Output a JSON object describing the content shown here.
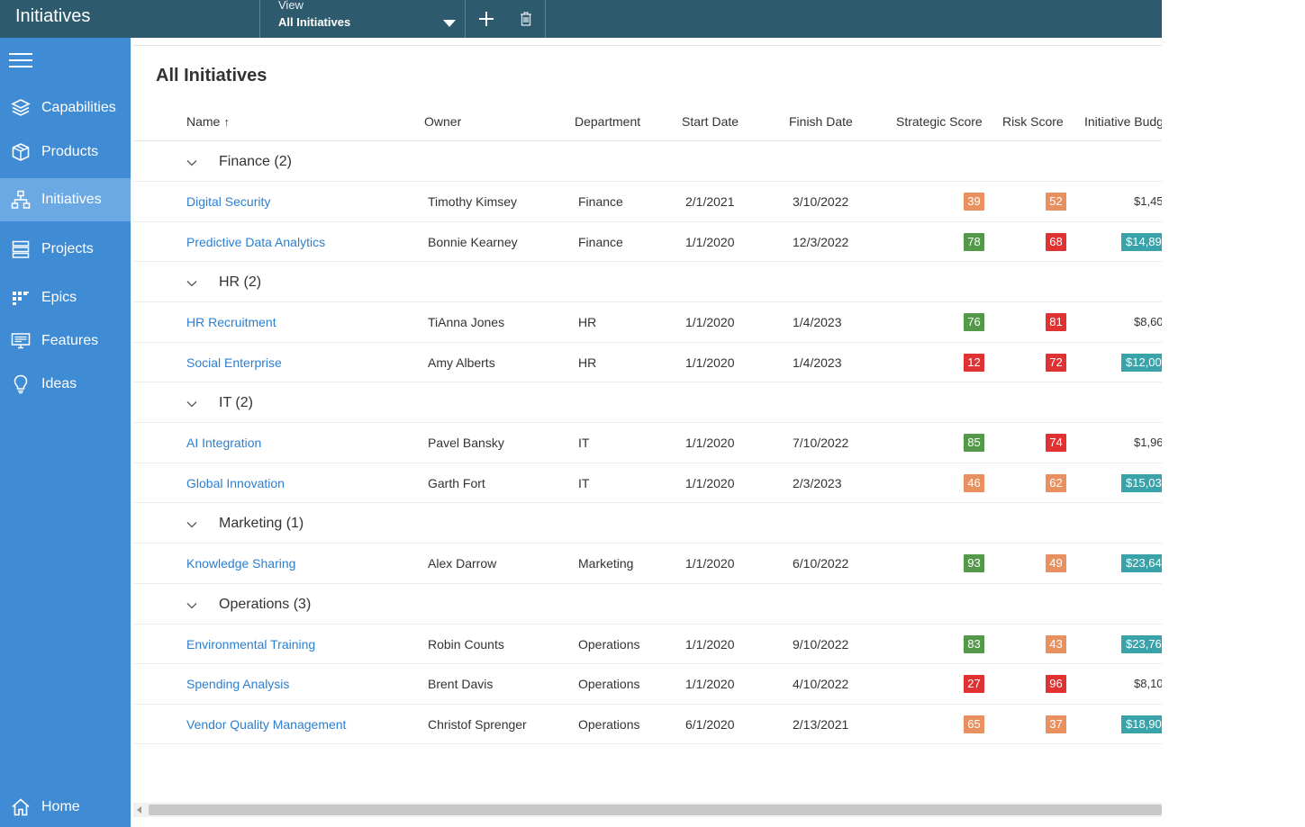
{
  "app": {
    "title": "Initiatives"
  },
  "toolbar": {
    "view_label": "View",
    "view_value": "All Initiatives",
    "add_icon": "plus-icon",
    "delete_icon": "trash-icon"
  },
  "sidebar": {
    "items": [
      {
        "label": "Capabilities",
        "icon": "layers-icon"
      },
      {
        "label": "Products",
        "icon": "box-icon"
      },
      {
        "label": "Initiatives",
        "icon": "hierarchy-icon"
      },
      {
        "label": "Projects",
        "icon": "stack-icon"
      },
      {
        "label": "Epics",
        "icon": "board-icon"
      },
      {
        "label": "Features",
        "icon": "monitor-icon"
      },
      {
        "label": "Ideas",
        "icon": "lightbulb-icon"
      }
    ],
    "home_label": "Home"
  },
  "main": {
    "title": "All Initiatives",
    "columns": [
      "Name",
      "Owner",
      "Department",
      "Start Date",
      "Finish Date",
      "Strategic Score",
      "Risk Score",
      "Initiative Budg"
    ],
    "sort_indicator": "↑"
  },
  "colors": {
    "green": "#54984a",
    "red": "#e03232",
    "orange": "#e99060",
    "teal": "#3aa3a9"
  },
  "groups": [
    {
      "label": "Finance (2)",
      "rows": [
        {
          "name": "Digital Security",
          "owner": "Timothy Kimsey",
          "dept": "Finance",
          "start": "2/1/2021",
          "finish": "3/10/2022",
          "strategic": "39",
          "strategic_color": "#e99060",
          "risk": "52",
          "risk_color": "#e99060",
          "budget": "$1,45",
          "budget_hl": false
        },
        {
          "name": "Predictive Data Analytics",
          "owner": "Bonnie Kearney",
          "dept": "Finance",
          "start": "1/1/2020",
          "finish": "12/3/2022",
          "strategic": "78",
          "strategic_color": "#54984a",
          "risk": "68",
          "risk_color": "#e03232",
          "budget": "$14,89",
          "budget_hl": true
        }
      ]
    },
    {
      "label": "HR (2)",
      "rows": [
        {
          "name": "HR Recruitment",
          "owner": "TiAnna Jones",
          "dept": "HR",
          "start": "1/1/2020",
          "finish": "1/4/2023",
          "strategic": "76",
          "strategic_color": "#54984a",
          "risk": "81",
          "risk_color": "#e03232",
          "budget": "$8,60",
          "budget_hl": false
        },
        {
          "name": "Social Enterprise",
          "owner": "Amy Alberts",
          "dept": "HR",
          "start": "1/1/2020",
          "finish": "1/4/2023",
          "strategic": "12",
          "strategic_color": "#e03232",
          "risk": "72",
          "risk_color": "#e03232",
          "budget": "$12,00",
          "budget_hl": true
        }
      ]
    },
    {
      "label": "IT (2)",
      "rows": [
        {
          "name": "AI Integration",
          "owner": "Pavel Bansky",
          "dept": "IT",
          "start": "1/1/2020",
          "finish": "7/10/2022",
          "strategic": "85",
          "strategic_color": "#54984a",
          "risk": "74",
          "risk_color": "#e03232",
          "budget": "$1,96",
          "budget_hl": false
        },
        {
          "name": "Global Innovation",
          "owner": "Garth Fort",
          "dept": "IT",
          "start": "1/1/2020",
          "finish": "2/3/2023",
          "strategic": "46",
          "strategic_color": "#e99060",
          "risk": "62",
          "risk_color": "#e99060",
          "budget": "$15,03",
          "budget_hl": true
        }
      ]
    },
    {
      "label": "Marketing (1)",
      "rows": [
        {
          "name": "Knowledge Sharing",
          "owner": "Alex Darrow",
          "dept": "Marketing",
          "start": "1/1/2020",
          "finish": "6/10/2022",
          "strategic": "93",
          "strategic_color": "#54984a",
          "risk": "49",
          "risk_color": "#e99060",
          "budget": "$23,64",
          "budget_hl": true
        }
      ]
    },
    {
      "label": "Operations (3)",
      "rows": [
        {
          "name": "Environmental Training",
          "owner": "Robin Counts",
          "dept": "Operations",
          "start": "1/1/2020",
          "finish": "9/10/2022",
          "strategic": "83",
          "strategic_color": "#54984a",
          "risk": "43",
          "risk_color": "#e99060",
          "budget": "$23,76",
          "budget_hl": true
        },
        {
          "name": "Spending Analysis",
          "owner": "Brent Davis",
          "dept": "Operations",
          "start": "1/1/2020",
          "finish": "4/10/2022",
          "strategic": "27",
          "strategic_color": "#e03232",
          "risk": "96",
          "risk_color": "#e03232",
          "budget": "$8,10",
          "budget_hl": false
        },
        {
          "name": "Vendor Quality Management",
          "owner": "Christof Sprenger",
          "dept": "Operations",
          "start": "6/1/2020",
          "finish": "2/13/2021",
          "strategic": "65",
          "strategic_color": "#e99060",
          "risk": "37",
          "risk_color": "#e99060",
          "budget": "$18,90",
          "budget_hl": true
        }
      ]
    }
  ]
}
